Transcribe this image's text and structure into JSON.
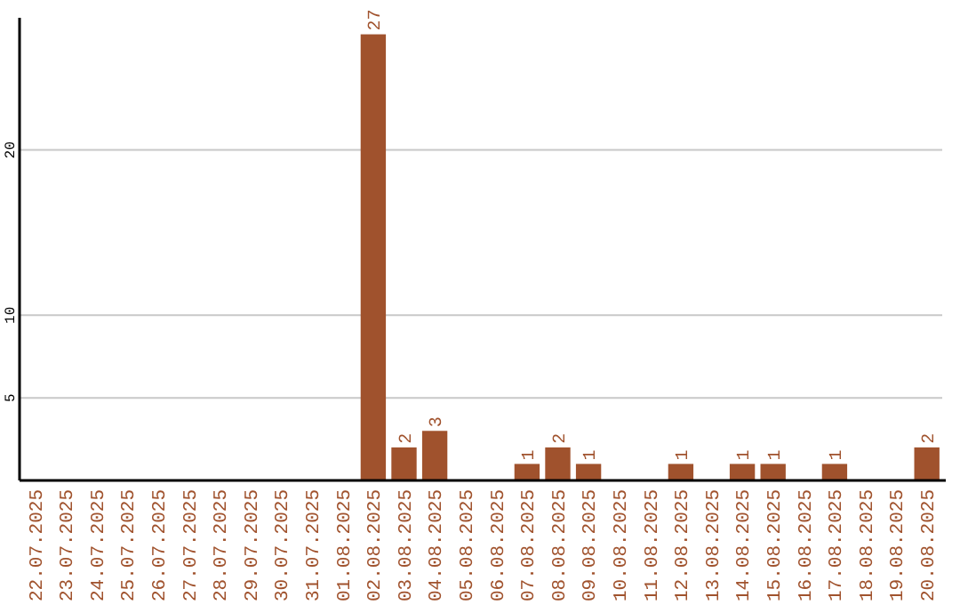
{
  "chart_data": {
    "type": "bar",
    "categories": [
      "22.07.2025",
      "23.07.2025",
      "24.07.2025",
      "25.07.2025",
      "26.07.2025",
      "27.07.2025",
      "28.07.2025",
      "29.07.2025",
      "30.07.2025",
      "31.07.2025",
      "01.08.2025",
      "02.08.2025",
      "03.08.2025",
      "04.08.2025",
      "05.08.2025",
      "06.08.2025",
      "07.08.2025",
      "08.08.2025",
      "09.08.2025",
      "10.08.2025",
      "11.08.2025",
      "12.08.2025",
      "13.08.2025",
      "14.08.2025",
      "15.08.2025",
      "16.08.2025",
      "17.08.2025",
      "18.08.2025",
      "19.08.2025",
      "20.08.2025"
    ],
    "values": [
      0,
      0,
      0,
      0,
      0,
      0,
      0,
      0,
      0,
      0,
      0,
      27,
      2,
      3,
      0,
      0,
      1,
      2,
      1,
      0,
      0,
      1,
      0,
      1,
      1,
      0,
      1,
      0,
      0,
      2
    ],
    "value_labels": [
      null,
      null,
      null,
      null,
      null,
      null,
      null,
      null,
      null,
      null,
      null,
      "27",
      "2",
      "3",
      null,
      null,
      "1",
      "2",
      "1",
      null,
      null,
      "1",
      null,
      "1",
      "1",
      null,
      "1",
      null,
      null,
      "2"
    ],
    "color": "#a0522d",
    "ylim": [
      0,
      28
    ],
    "yticks": [
      5,
      10,
      20
    ],
    "grid": "y"
  }
}
